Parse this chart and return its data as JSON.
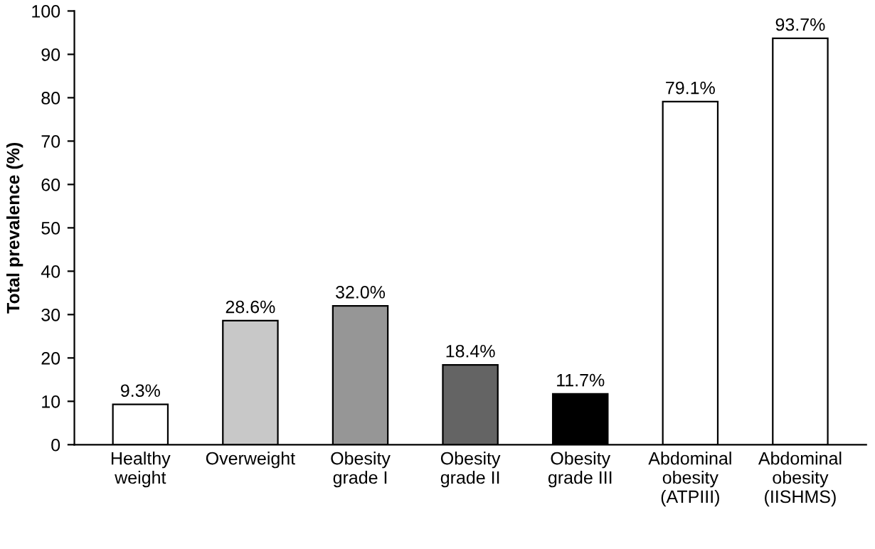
{
  "chart_data": {
    "type": "bar",
    "ylabel": "Total prevalence (%)",
    "categories": [
      "Healthy\nweight",
      "Overweight",
      "Obesity\ngrade I",
      "Obesity\ngrade II",
      "Obesity\ngrade III",
      "Abdominal\nobesity\n(ATPIII)",
      "Abdominal\nobesity\n(IISHMS)"
    ],
    "values": [
      9.3,
      28.6,
      32.0,
      18.4,
      11.7,
      79.1,
      93.7
    ],
    "value_labels": [
      "9.3%",
      "28.6%",
      "32.0%",
      "18.4%",
      "11.7%",
      "79.1%",
      "93.7%"
    ],
    "colors": [
      "#ffffff",
      "#c8c8c8",
      "#969696",
      "#646464",
      "#000000",
      "#ffffff",
      "#ffffff"
    ],
    "ylim": [
      0,
      100
    ],
    "yticks": [
      0,
      10,
      20,
      30,
      40,
      50,
      60,
      70,
      80,
      90,
      100
    ],
    "grid": false,
    "legend": false
  }
}
